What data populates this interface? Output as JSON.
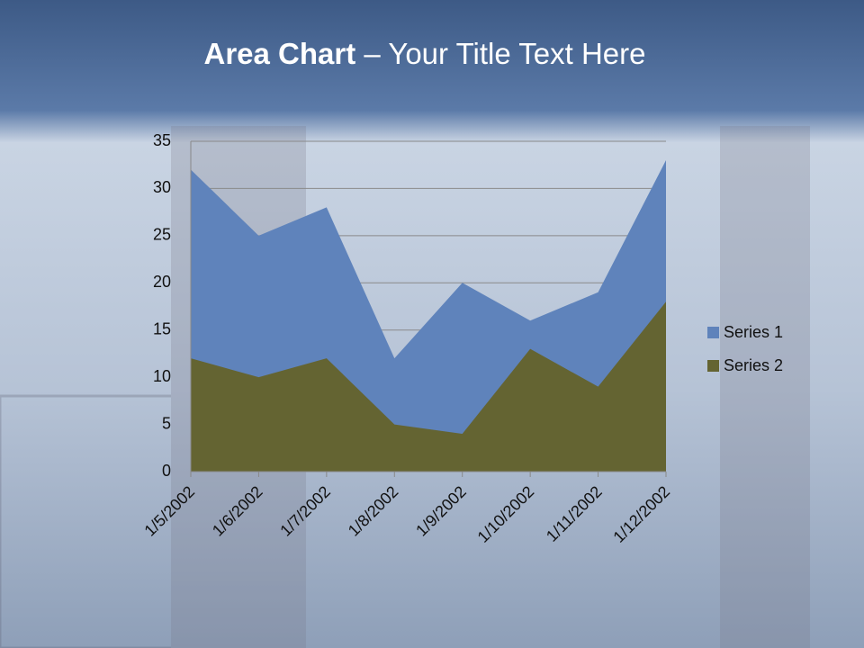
{
  "chart_data": {
    "type": "area",
    "title": {
      "bold": "Area Chart",
      "rest": "– Your Title Text Here"
    },
    "categories": [
      "1/5/2002",
      "1/6/2002",
      "1/7/2002",
      "1/8/2002",
      "1/9/2002",
      "1/10/2002",
      "1/11/2002",
      "1/12/2002"
    ],
    "series": [
      {
        "name": "Series 1",
        "color": "#5f83bb",
        "values": [
          32,
          25,
          28,
          12,
          20,
          16,
          19,
          33
        ]
      },
      {
        "name": "Series 2",
        "color": "#646432",
        "values": [
          12,
          10,
          12,
          5,
          4,
          13,
          9,
          18
        ]
      }
    ],
    "ylim": [
      0,
      35
    ],
    "yticks": [
      0,
      5,
      10,
      15,
      20,
      25,
      30,
      35
    ],
    "grid": true,
    "legend": "right"
  }
}
